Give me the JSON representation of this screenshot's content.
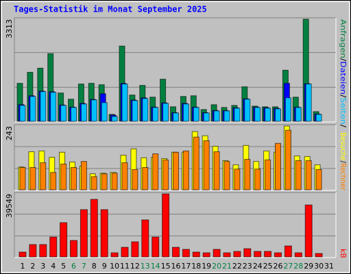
{
  "separator": "/",
  "chart_data": [
    {
      "type": "bar",
      "title": "Tages-Statistik im Monat September 2025",
      "ylim": [
        0,
        3313
      ],
      "yticks": [
        3313
      ],
      "grid": true,
      "series": [
        {
          "name": "Anfragen",
          "color": "#008040",
          "values": [
            1231,
            1589,
            1724,
            2194,
            918,
            716,
            1209,
            1231,
            1186,
            224,
            2440,
            851,
            1164,
            783,
            1365,
            470,
            806,
            828,
            381,
            537,
            448,
            515,
            1119,
            492,
            470,
            470,
            1657,
            783,
            3313,
            313,
            0
          ]
        },
        {
          "name": "Dateien",
          "color": "#0000ff",
          "values": [
            540,
            830,
            980,
            960,
            530,
            460,
            580,
            710,
            895,
            200,
            1230,
            690,
            760,
            460,
            600,
            280,
            580,
            460,
            280,
            350,
            345,
            440,
            730,
            460,
            440,
            420,
            1231,
            460,
            1220,
            235,
            0
          ]
        },
        {
          "name": "Seiten",
          "color": "#00c0ff",
          "values": [
            515,
            806,
            962,
            940,
            515,
            448,
            560,
            694,
            604,
            157,
            1209,
            672,
            739,
            448,
            582,
            269,
            560,
            448,
            269,
            336,
            336,
            425,
            716,
            448,
            425,
            403,
            761,
            448,
            1209,
            224,
            0
          ]
        }
      ]
    },
    {
      "type": "bar",
      "ylim": [
        0,
        243
      ],
      "yticks": [
        243
      ],
      "grid": true,
      "series": [
        {
          "name": "Besuche",
          "color": "#ffff00",
          "values": [
            87,
            145,
            148,
            124,
            143,
            106,
            90,
            61,
            63,
            66,
            132,
            156,
            122,
            124,
            119,
            143,
            143,
            222,
            206,
            166,
            111,
            95,
            169,
            108,
            148,
            143,
            243,
            129,
            127,
            95,
            0
          ]
        },
        {
          "name": "Rechner",
          "color": "#ff8000",
          "values": [
            85,
            85,
            103,
            66,
            98,
            85,
            108,
            50,
            61,
            63,
            103,
            77,
            85,
            137,
            114,
            143,
            148,
            201,
            187,
            145,
            108,
            79,
            116,
            79,
            114,
            177,
            227,
            111,
            111,
            77,
            0
          ]
        }
      ]
    },
    {
      "type": "bar",
      "ylim": [
        0,
        39549
      ],
      "yticks": [
        39549
      ],
      "grid": true,
      "categories": [
        "1",
        "2",
        "3",
        "4",
        "5",
        "6",
        "7",
        "8",
        "9",
        "10",
        "11",
        "12",
        "13",
        "14",
        "15",
        "16",
        "17",
        "18",
        "19",
        "20",
        "21",
        "22",
        "23",
        "24",
        "25",
        "26",
        "27",
        "28",
        "29",
        "30",
        "31"
      ],
      "category_colors": [
        "#000000",
        "#000000",
        "#000000",
        "#000000",
        "#000000",
        "#008040",
        "#008040",
        "#000000",
        "#000000",
        "#000000",
        "#000000",
        "#000000",
        "#008040",
        "#008040",
        "#000000",
        "#000000",
        "#000000",
        "#000000",
        "#000000",
        "#008040",
        "#008040",
        "#000000",
        "#000000",
        "#000000",
        "#000000",
        "#000000",
        "#008040",
        "#008040",
        "#000000",
        "#000000",
        "#000000"
      ],
      "series": [
        {
          "name": "kB",
          "color": "#ff0000",
          "values": [
            3009,
            7738,
            7738,
            12467,
            21494,
            10318,
            29662,
            36111,
            29662,
            2579,
            6018,
            9458,
            23214,
            12467,
            39549,
            6018,
            4729,
            3009,
            2579,
            4729,
            2579,
            3439,
            5159,
            3439,
            3439,
            2579,
            6878,
            2579,
            32593,
            2149,
            0
          ]
        }
      ]
    }
  ]
}
